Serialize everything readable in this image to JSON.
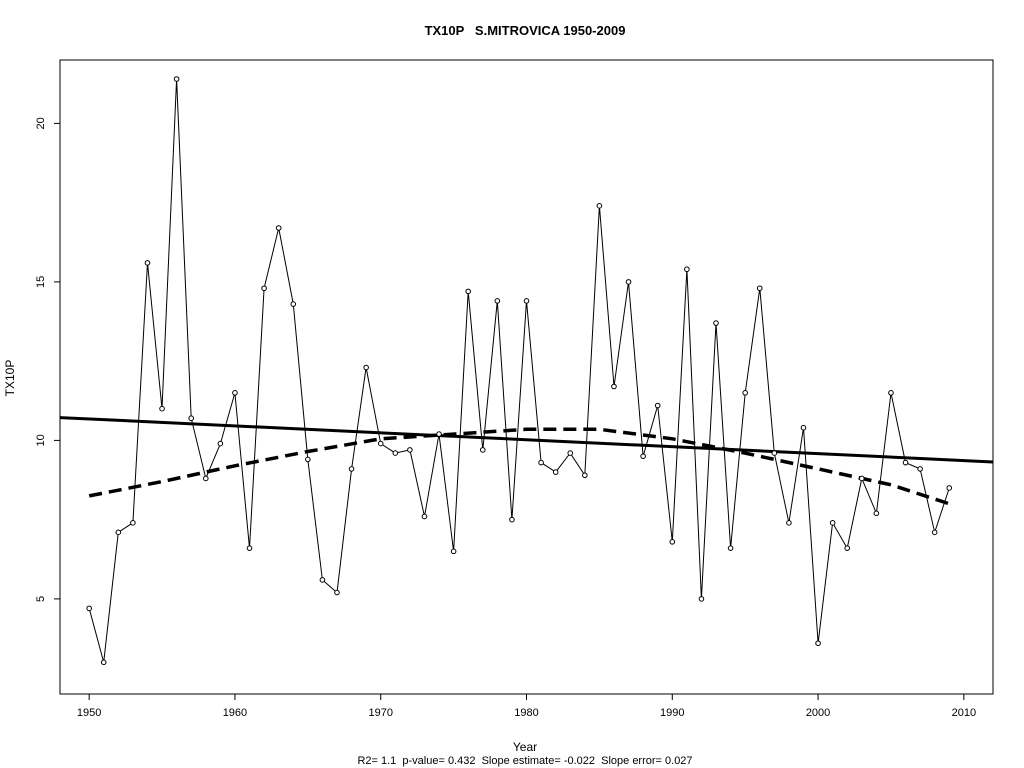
{
  "chart_data": {
    "type": "line",
    "title": "TX10P   S.MITROVICA 1950-2009",
    "xlabel": "Year",
    "ylabel": "TX10P",
    "subtitle": "R2= 1.1  p-value= 0.432  Slope estimate= -0.022  Slope error= 0.027",
    "xlim": [
      1948,
      2012
    ],
    "ylim": [
      2.0,
      22.0
    ],
    "x_ticks": [
      1950,
      1960,
      1970,
      1980,
      1990,
      2000,
      2010
    ],
    "y_ticks": [
      5,
      10,
      15,
      20
    ],
    "grid": false,
    "legend": "none",
    "series": [
      {
        "style": "solid-line-with-points",
        "x": [
          1950,
          1951,
          1952,
          1953,
          1954,
          1955,
          1956,
          1957,
          1958,
          1959,
          1960,
          1961,
          1962,
          1963,
          1964,
          1965,
          1966,
          1967,
          1968,
          1969,
          1970,
          1971,
          1972,
          1973,
          1974,
          1975,
          1976,
          1977,
          1978,
          1979,
          1980,
          1981,
          1982,
          1983,
          1984,
          1985,
          1986,
          1987,
          1988,
          1989,
          1990,
          1991,
          1992,
          1993,
          1994,
          1995,
          1996,
          1997,
          1998,
          1999,
          2000,
          2001,
          2002,
          2003,
          2004,
          2005,
          2006,
          2007,
          2008,
          2009
        ],
        "y": [
          4.7,
          3.0,
          7.1,
          7.4,
          15.6,
          11.0,
          21.4,
          10.7,
          8.8,
          9.9,
          11.5,
          6.6,
          14.8,
          16.7,
          14.3,
          9.4,
          5.6,
          5.2,
          9.1,
          12.3,
          9.9,
          9.6,
          9.7,
          7.6,
          10.2,
          6.5,
          14.7,
          9.7,
          14.4,
          7.5,
          14.4,
          9.3,
          9.0,
          9.6,
          8.9,
          17.4,
          11.7,
          15.0,
          9.5,
          11.1,
          6.8,
          15.4,
          5.0,
          13.7,
          6.6,
          11.5,
          14.8,
          9.6,
          7.4,
          10.4,
          3.6,
          7.4,
          6.6,
          8.8,
          7.7,
          11.5,
          9.3,
          9.1,
          7.1,
          8.5
        ]
      },
      {
        "style": "thick-solid-trend",
        "x": [
          1948,
          2012
        ],
        "y": [
          10.72,
          9.32
        ]
      },
      {
        "style": "thick-dashed-smooth",
        "x": [
          1950,
          1955,
          1960,
          1965,
          1970,
          1975,
          1980,
          1985,
          1990,
          1995,
          2000,
          2005,
          2009
        ],
        "y": [
          8.25,
          8.7,
          9.2,
          9.65,
          10.05,
          10.2,
          10.35,
          10.35,
          10.05,
          9.6,
          9.1,
          8.6,
          8.0
        ]
      }
    ]
  }
}
